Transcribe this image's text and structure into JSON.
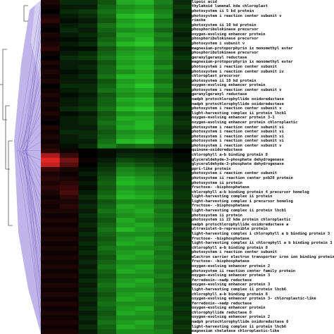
{
  "chart_data": {
    "type": "heatmap",
    "title": "",
    "xlabel": "",
    "ylabel": "",
    "columns": 8,
    "colors": {
      "negative": "#ff2a2a",
      "zero": "#000000",
      "positive": "#33ff33",
      "dendrogram_fill": "#b4a8e8",
      "dendrogram_line": "#7a6bbf"
    },
    "row_labels": [
      "lipoic acid",
      "thylakoid lumenal kda chloroplast",
      "photosystem ii 5 kd protein",
      "photosystem i reaction center subunit v",
      "rieske",
      "photosystem ii 10 kd protein",
      "phosphoribulokinase precursor",
      "oxygen-evolving enhancer protein",
      "phosphoribulokinase precursor",
      "photosystem i subunit v",
      "magnesium-protoporphyrin ix monomethyl ester",
      "phosphoribulokinase precursor",
      "geranylgeranyl reductase",
      "magnesium-protoporphyrin ix monomethyl ester",
      "photosystem i reaction center subunit",
      "photosystem i reaction center subunit iv",
      "chloroplast precursor",
      "photosystem ii 10 kd protein",
      "oxygen-evolving enhancer protein",
      "photosystem i reaction center subunit v",
      "geranylgeranyl reductase",
      "nadph protochlorophyllide oxidoreductase",
      "nadph protochlorophyllide oxidoreductase",
      "photosystem i reaction center subunit v",
      "light-harvesting complex ii protein lhcb1",
      "oxygen-evolving enhancer protein 3-1",
      "oxygen-evolving enhancer protein chloroplastic",
      "photosystem i reaction center subunit vi",
      "photosystem i reaction center subunit vi",
      "photosystem i reaction center subunit vi",
      "photosystem i reaction center subunit vi",
      "photosystem i reaction center subunit v",
      "quinone-oxidoreductase",
      "chlorophyll a-b binding protein 8",
      "glyceraldehyde-3-phosphate dehydrogenase",
      "glyceraldehyde-3-phosphate dehydrogenase",
      "ppri-like protein",
      "photosystem i reaction center subunit",
      "photosystem ii reaction center psb28 protein",
      "photosystem ii protein",
      "fructose- -bisphosphatase",
      "chlorophyll a-b binding protein 4 precursor homolog",
      "light-harvesting complex ii protein",
      "light-harvesting complex i precursor homolog",
      "fructose- -bisphosphatase",
      "light-harvesting complex ii protein lhcb1",
      "photosystem ii protein",
      "photosystem ii 22 kda protein chloroplastic",
      "nadph protochlorophyllide oxidoreductase a",
      "ultraviolet-b-repressible protein",
      "light-harvesting complex i chlorophyll a b binding protein 3",
      "fructose- -bisphosphatase",
      "light-harvesting complex ii chlorophyll a b binding protein 3",
      "chlorophyll a-b binding protein 8",
      "photosystem i reaction center subunit",
      "electron carrier electron transporter iron ion binding protein",
      "fructose- -bisphosphatase",
      "oxygen-evolving enhancer protein 2",
      "photosystem ii reaction center family protein",
      "oxygen-evolving enhancer protein 3",
      "ferredoxin--nadp reductase",
      "oxygen-evolving enhancer protein 3",
      "light-harvesting complex ii protein lhcb6",
      "chlorophyll a-b binding protein 8",
      "oxygen-evolving enhancer protein 3- chloroplastic-like",
      "ferredoxin--nadp reductase",
      "oxygen-evolving enhancer protein",
      "chlorophyllide reductase 8",
      "oxygen-evolving enhancer protein 2",
      "nadph protochlorophyllide oxidoreductase 8",
      "light-harvesting complex ii protein lhcb6",
      "magnesium chelatase chloroplastic-like"
    ],
    "values": [
      [
        -0.2,
        0.3,
        0.3,
        0.6,
        1.2,
        1.3,
        0.9,
        0.3
      ],
      [
        -0.1,
        0.2,
        0.2,
        0.7,
        1.0,
        1.1,
        0.8,
        0.4
      ],
      [
        0.0,
        0.3,
        0.4,
        0.8,
        1.1,
        1.2,
        0.9,
        0.3
      ],
      [
        -0.2,
        0.2,
        0.3,
        0.7,
        1.3,
        1.4,
        1.0,
        0.2
      ],
      [
        -0.3,
        0.1,
        0.2,
        0.6,
        1.1,
        1.2,
        0.8,
        0.3
      ],
      [
        -0.1,
        0.2,
        0.3,
        0.8,
        1.2,
        1.3,
        0.9,
        0.4
      ],
      [
        0.0,
        0.3,
        0.2,
        0.7,
        1.0,
        1.1,
        0.7,
        0.3
      ],
      [
        -0.2,
        0.2,
        0.3,
        0.6,
        1.2,
        1.2,
        0.9,
        0.2
      ],
      [
        -0.1,
        0.1,
        0.2,
        0.7,
        1.1,
        1.3,
        0.8,
        0.3
      ],
      [
        -0.2,
        0.2,
        0.3,
        0.8,
        1.3,
        1.4,
        1.0,
        0.4
      ],
      [
        -0.3,
        0.1,
        0.1,
        0.6,
        1.0,
        1.1,
        0.8,
        0.2
      ],
      [
        -0.1,
        0.2,
        0.3,
        0.7,
        1.1,
        1.2,
        0.9,
        0.3
      ],
      [
        0.0,
        0.3,
        0.4,
        0.8,
        1.2,
        1.3,
        0.9,
        0.4
      ],
      [
        -0.2,
        0.2,
        0.2,
        0.6,
        1.1,
        1.2,
        0.8,
        0.3
      ],
      [
        -0.1,
        0.2,
        0.3,
        0.7,
        1.2,
        1.3,
        1.0,
        0.3
      ],
      [
        -0.2,
        0.1,
        0.2,
        0.7,
        1.0,
        1.2,
        0.8,
        0.2
      ],
      [
        -0.1,
        0.2,
        0.3,
        0.8,
        1.3,
        1.3,
        0.9,
        0.4
      ],
      [
        -0.2,
        0.2,
        0.2,
        0.6,
        1.1,
        1.2,
        0.8,
        0.3
      ],
      [
        0.0,
        0.3,
        0.3,
        0.7,
        1.2,
        1.4,
        1.0,
        0.3
      ],
      [
        -0.1,
        0.2,
        0.3,
        0.8,
        1.1,
        1.2,
        0.9,
        0.4
      ],
      [
        -0.2,
        0.1,
        0.2,
        0.6,
        1.0,
        1.1,
        0.7,
        0.2
      ],
      [
        -0.1,
        0.2,
        0.3,
        0.7,
        1.2,
        1.3,
        0.9,
        0.3
      ],
      [
        -0.2,
        0.2,
        0.3,
        0.7,
        1.1,
        1.2,
        0.8,
        0.3
      ],
      [
        -0.1,
        0.3,
        0.4,
        0.8,
        1.3,
        1.4,
        1.0,
        0.4
      ],
      [
        -0.2,
        0.1,
        0.2,
        0.6,
        1.0,
        1.1,
        0.8,
        0.2
      ],
      [
        -0.1,
        0.2,
        0.3,
        0.7,
        1.2,
        1.2,
        0.9,
        0.3
      ],
      [
        0.0,
        0.2,
        0.3,
        0.8,
        1.1,
        1.3,
        0.9,
        0.4
      ],
      [
        -0.2,
        0.2,
        0.2,
        0.7,
        1.2,
        1.3,
        0.8,
        0.3
      ],
      [
        -0.1,
        0.3,
        0.3,
        0.6,
        1.0,
        1.1,
        0.8,
        0.2
      ],
      [
        -0.2,
        0.2,
        0.3,
        0.7,
        1.1,
        1.2,
        0.9,
        0.3
      ],
      [
        -0.1,
        0.2,
        0.2,
        0.8,
        1.3,
        1.4,
        1.0,
        0.4
      ],
      [
        -0.2,
        0.1,
        0.3,
        0.9,
        0.7,
        0.8,
        0.6,
        0.2
      ],
      [
        -0.3,
        -0.1,
        0.0,
        0.1,
        0.2,
        0.2,
        0.1,
        0.0
      ],
      [
        -1.2,
        -0.4,
        0.0,
        0.1,
        0.3,
        0.3,
        0.2,
        0.1
      ],
      [
        -1.6,
        -0.8,
        -0.1,
        0.2,
        0.5,
        0.4,
        0.3,
        0.1
      ],
      [
        -1.4,
        -0.6,
        0.0,
        0.3,
        0.7,
        0.6,
        0.4,
        0.2
      ],
      [
        -0.4,
        -0.2,
        0.1,
        0.4,
        0.9,
        0.8,
        0.6,
        0.2
      ],
      [
        -0.2,
        -0.1,
        0.2,
        0.5,
        1.0,
        0.9,
        0.7,
        0.3
      ],
      [
        -0.3,
        -0.2,
        0.1,
        0.6,
        1.2,
        1.1,
        0.8,
        0.3
      ],
      [
        -0.2,
        -0.3,
        0.2,
        0.7,
        1.3,
        1.2,
        0.9,
        0.4
      ],
      [
        -0.3,
        -0.4,
        0.1,
        0.6,
        1.1,
        1.0,
        0.8,
        0.3
      ],
      [
        -0.2,
        -0.5,
        0.2,
        0.7,
        1.2,
        1.1,
        0.9,
        0.4
      ],
      [
        -0.1,
        -0.3,
        0.3,
        0.8,
        1.3,
        1.2,
        1.0,
        0.4
      ],
      [
        -0.2,
        -0.2,
        0.2,
        0.6,
        1.0,
        1.0,
        0.7,
        0.3
      ],
      [
        -0.1,
        -0.3,
        0.3,
        0.7,
        1.2,
        1.1,
        0.9,
        0.4
      ],
      [
        -0.2,
        -0.2,
        0.2,
        0.8,
        1.1,
        1.2,
        0.8,
        0.3
      ],
      [
        -0.1,
        -0.1,
        0.3,
        0.7,
        1.0,
        1.1,
        0.9,
        0.4
      ],
      [
        -0.2,
        -0.2,
        0.2,
        0.6,
        1.2,
        1.0,
        0.8,
        0.3
      ],
      [
        -0.1,
        -0.1,
        0.3,
        0.7,
        1.1,
        1.2,
        0.9,
        0.4
      ],
      [
        -0.2,
        -0.2,
        0.2,
        0.8,
        1.3,
        1.1,
        1.0,
        0.3
      ],
      [
        -0.1,
        -0.1,
        0.3,
        0.7,
        1.0,
        1.0,
        0.8,
        0.4
      ],
      [
        -0.2,
        -0.2,
        0.2,
        0.6,
        1.1,
        1.2,
        0.9,
        0.3
      ],
      [
        -0.1,
        -0.1,
        0.3,
        0.7,
        1.2,
        1.1,
        0.8,
        0.4
      ],
      [
        -0.2,
        -0.2,
        0.2,
        0.8,
        1.0,
        1.0,
        0.9,
        0.3
      ],
      [
        -0.1,
        -0.1,
        0.3,
        0.7,
        1.1,
        1.2,
        0.8,
        0.4
      ],
      [
        -0.2,
        -0.2,
        0.2,
        0.6,
        1.2,
        1.1,
        0.9,
        0.3
      ],
      [
        -0.1,
        -0.1,
        0.3,
        0.7,
        1.0,
        1.0,
        0.8,
        0.4
      ],
      [
        -0.2,
        -0.2,
        0.2,
        0.8,
        1.1,
        1.2,
        0.9,
        0.3
      ],
      [
        -0.1,
        -0.1,
        0.3,
        0.7,
        1.2,
        1.1,
        0.8,
        0.4
      ],
      [
        -0.2,
        -0.2,
        0.2,
        0.6,
        1.0,
        1.0,
        0.9,
        0.3
      ],
      [
        -0.1,
        -0.1,
        0.3,
        0.7,
        1.1,
        1.2,
        0.8,
        0.4
      ],
      [
        -0.2,
        -0.2,
        0.2,
        0.8,
        1.2,
        1.1,
        0.9,
        0.3
      ],
      [
        -0.1,
        -0.1,
        0.3,
        0.7,
        1.0,
        1.0,
        0.8,
        0.4
      ],
      [
        -0.2,
        -0.2,
        0.2,
        0.6,
        1.1,
        1.2,
        0.9,
        0.3
      ],
      [
        -0.1,
        -0.1,
        0.3,
        0.7,
        1.2,
        1.1,
        0.8,
        0.4
      ],
      [
        -0.2,
        -0.2,
        0.2,
        0.8,
        1.0,
        1.0,
        0.9,
        0.3
      ],
      [
        -0.1,
        -0.1,
        0.3,
        0.7,
        1.1,
        1.2,
        0.8,
        0.4
      ],
      [
        -0.2,
        -0.2,
        0.2,
        0.6,
        1.2,
        1.1,
        0.9,
        0.3
      ],
      [
        -0.1,
        -0.1,
        0.3,
        0.7,
        1.0,
        1.0,
        0.8,
        0.4
      ],
      [
        -0.2,
        -0.2,
        0.2,
        0.8,
        1.1,
        1.2,
        0.9,
        0.3
      ],
      [
        -0.1,
        -0.1,
        0.3,
        0.7,
        1.2,
        1.1,
        0.8,
        0.4
      ],
      [
        -0.2,
        -0.2,
        0.2,
        0.6,
        1.0,
        1.0,
        0.9,
        0.3
      ]
    ]
  }
}
